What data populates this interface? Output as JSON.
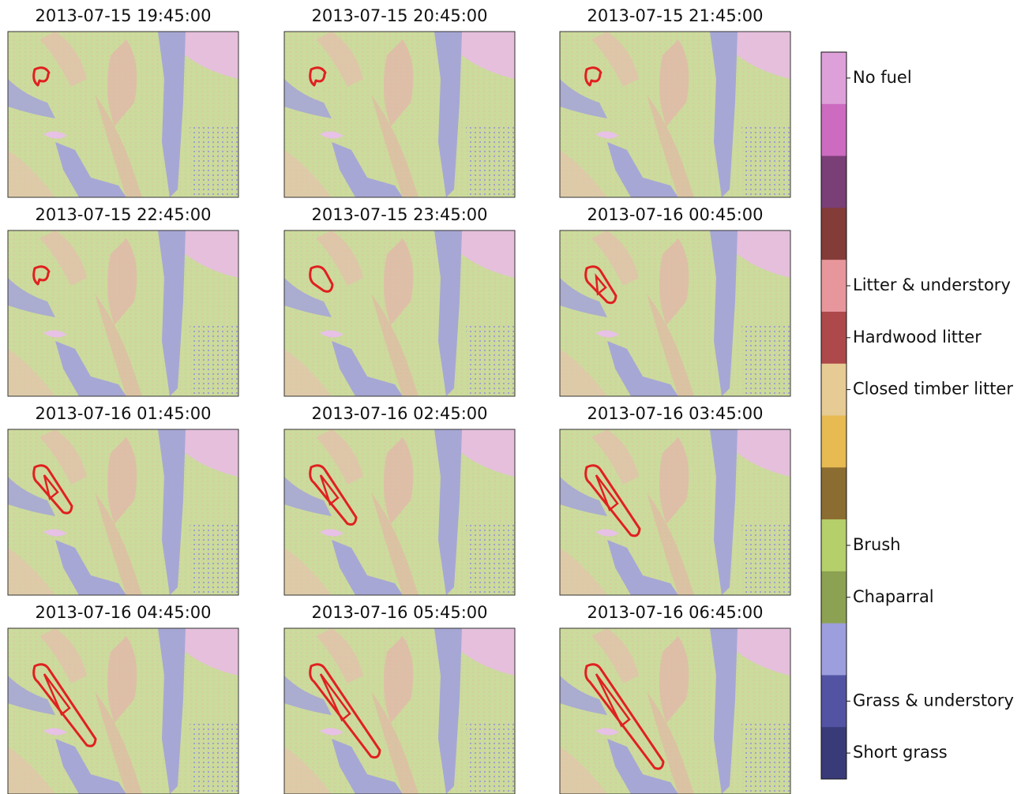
{
  "panels": [
    {
      "title": "2013-07-15 19:45:00"
    },
    {
      "title": "2013-07-15 20:45:00"
    },
    {
      "title": "2013-07-15 21:45:00"
    },
    {
      "title": "2013-07-15 22:45:00"
    },
    {
      "title": "2013-07-15 23:45:00"
    },
    {
      "title": "2013-07-16 00:45:00"
    },
    {
      "title": "2013-07-16 01:45:00"
    },
    {
      "title": "2013-07-16 02:45:00"
    },
    {
      "title": "2013-07-16 03:45:00"
    },
    {
      "title": "2013-07-16 04:45:00"
    },
    {
      "title": "2013-07-16 05:45:00"
    },
    {
      "title": "2013-07-16 06:45:00"
    }
  ],
  "colorbar": {
    "segments": [
      {
        "color": "#dda0d9",
        "label": "No fuel"
      },
      {
        "color": "#cc6bc0"
      },
      {
        "color": "#7a3f76"
      },
      {
        "color": "#843c39"
      },
      {
        "color": "#e7969c",
        "label": "Litter & understory"
      },
      {
        "color": "#ad494a",
        "label": "Hardwood litter"
      },
      {
        "color": "#e7cb94",
        "label": "Closed timber litter"
      },
      {
        "color": "#e7ba52"
      },
      {
        "color": "#8c6d31"
      },
      {
        "color": "#b5cf6b",
        "label": "Brush"
      },
      {
        "color": "#8ca252",
        "label": "Chaparral"
      },
      {
        "color": "#9c9ede"
      },
      {
        "color": "#5254a3",
        "label": "Grass & understory"
      },
      {
        "color": "#393b79",
        "label": "Short grass"
      }
    ]
  }
}
